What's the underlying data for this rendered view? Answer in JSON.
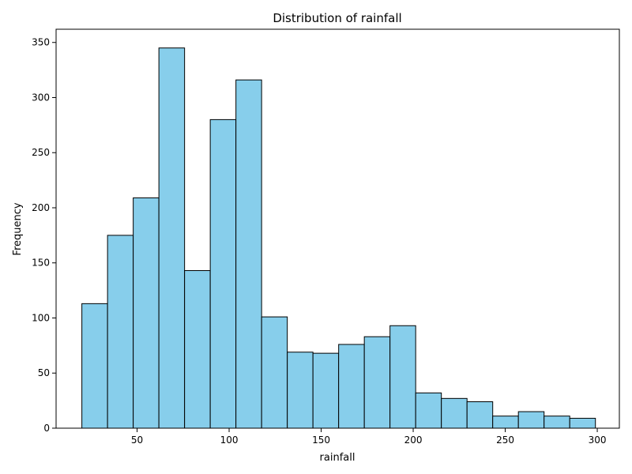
{
  "chart_data": {
    "type": "bar",
    "title": "Distribution of rainfall",
    "xlabel": "rainfall",
    "ylabel": "Frequency",
    "bin_edges": [
      20,
      33.95,
      47.9,
      61.85,
      75.8,
      89.75,
      103.7,
      117.65,
      131.6,
      145.55,
      159.5,
      173.45,
      187.4,
      201.35,
      215.3,
      229.25,
      243.2,
      257.15,
      271.1,
      285.05,
      299
    ],
    "values": [
      113,
      175,
      209,
      345,
      143,
      280,
      316,
      101,
      69,
      68,
      76,
      83,
      93,
      32,
      27,
      24,
      11,
      15,
      11,
      9
    ],
    "xlim": [
      6,
      312
    ],
    "ylim": [
      0,
      362
    ],
    "xticks": [
      50,
      100,
      150,
      200,
      250,
      300
    ],
    "yticks": [
      0,
      50,
      100,
      150,
      200,
      250,
      300,
      350
    ],
    "bar_color": "#87CEEB",
    "edge_color": "#000000",
    "grid": false,
    "legend": "none"
  }
}
